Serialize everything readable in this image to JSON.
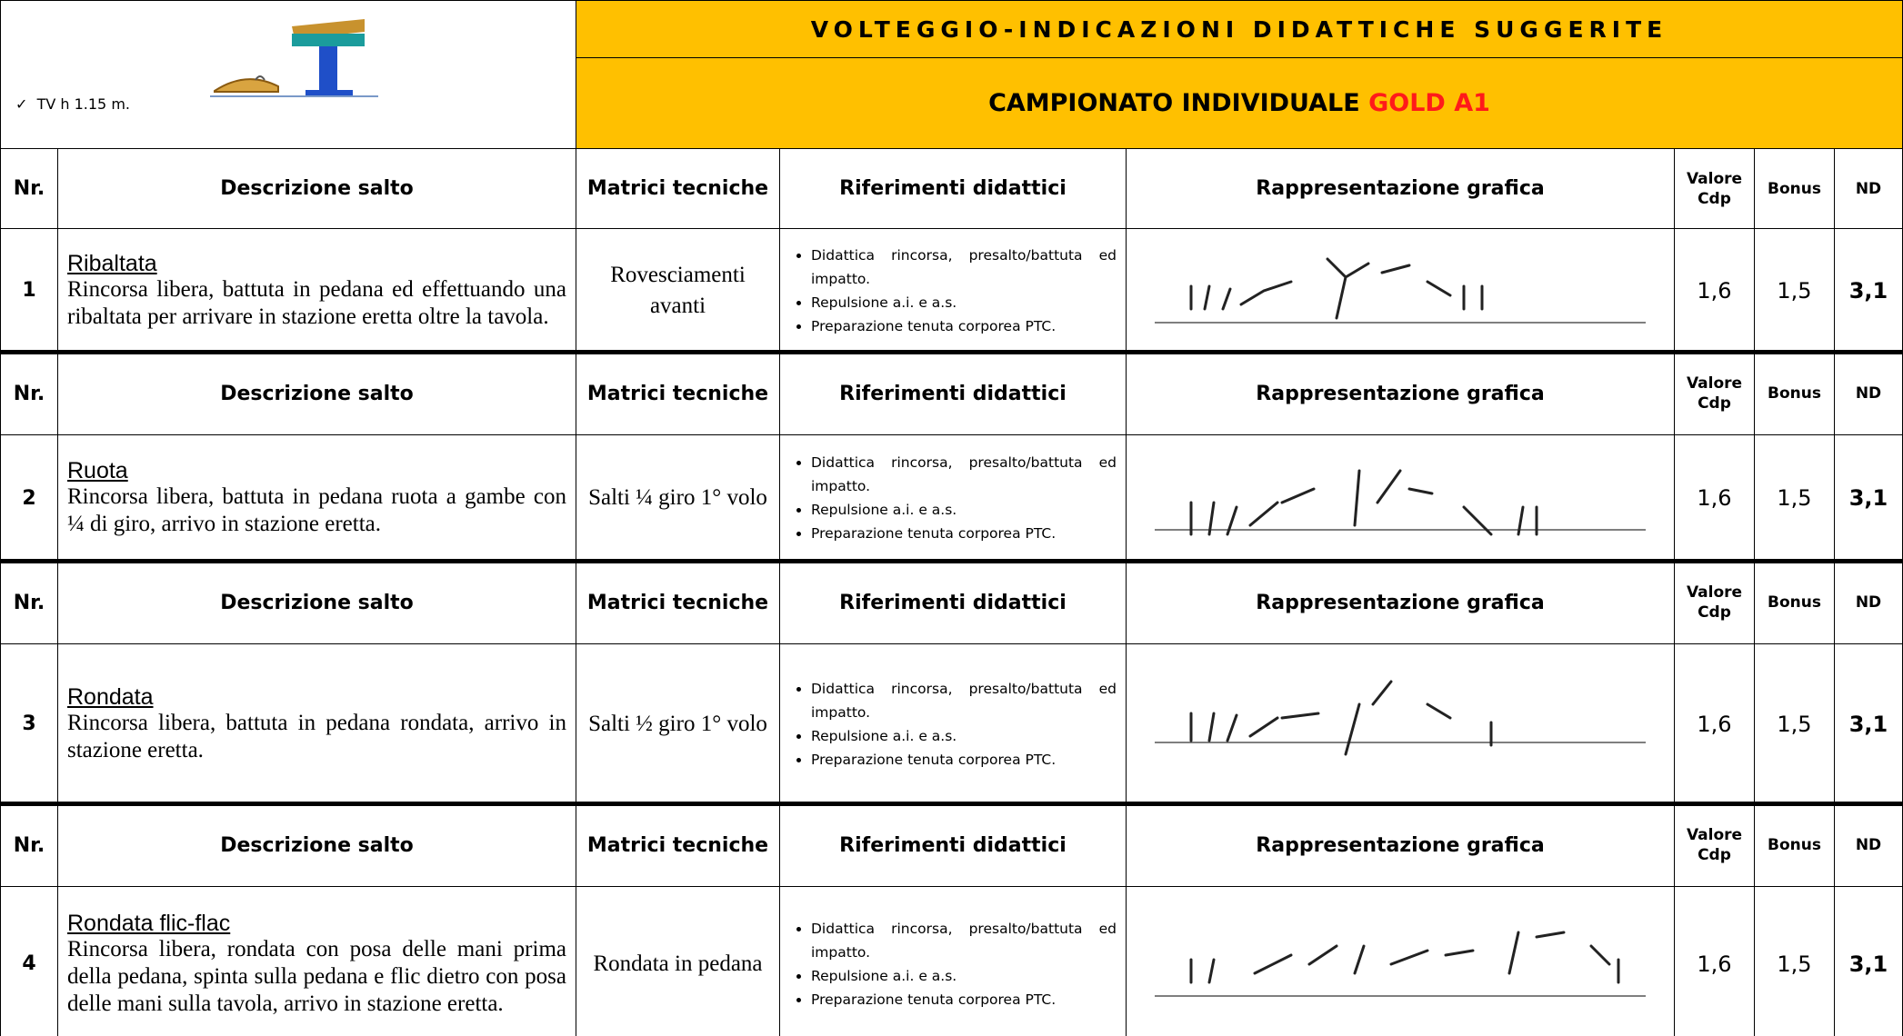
{
  "header": {
    "note": "TV h 1.15 m.",
    "title": "VOLTEGGIO-INDICAZIONI DIDATTICHE SUGGERITE",
    "subtitle": "CAMPIONATO INDIVIDUALE",
    "subtitle_highlight": "GOLD A1"
  },
  "columns": [
    "Nr.",
    "Descrizione salto",
    "Matrici tecniche",
    "Riferimenti didattici",
    "Rappresentazione grafica",
    "Valore Cdp",
    "Bonus",
    "ND"
  ],
  "jumps": [
    {
      "nr": 1,
      "name": "Ribaltata",
      "description": "Rincorsa libera, battuta in pedana ed effettuando una ribaltata per arrivare in stazione eretta oltre la tavola.",
      "matrici": "Rovesciamenti avanti",
      "riferimenti": [
        "Didattica rincorsa, presalto/battuta ed impatto.",
        "Repulsione a.i. e a.s.",
        "Preparazione tenuta corporea PTC."
      ],
      "valore": "1,6",
      "bonus": "1,5",
      "nd": "3,1"
    },
    {
      "nr": 2,
      "name": "Ruota",
      "description": "Rincorsa libera, battuta in pedana ruota a gambe con ¼ di giro, arrivo in stazione eretta.",
      "matrici": "Salti ¼ giro 1° volo",
      "riferimenti": [
        "Didattica rincorsa, presalto/battuta ed impatto.",
        "Repulsione a.i. e a.s.",
        "Preparazione tenuta corporea PTC."
      ],
      "valore": "1,6",
      "bonus": "1,5",
      "nd": "3,1"
    },
    {
      "nr": 3,
      "name": "Rondata",
      "description": "Rincorsa libera, battuta in pedana rondata, arrivo in stazione eretta.",
      "matrici": "Salti ½ giro 1° volo",
      "riferimenti": [
        "Didattica rincorsa, presalto/battuta ed impatto.",
        "Repulsione a.i. e a.s.",
        "Preparazione tenuta corporea PTC."
      ],
      "valore": "1,6",
      "bonus": "1,5",
      "nd": "3,1"
    },
    {
      "nr": 4,
      "name": "Rondata flic-flac",
      "description": "Rincorsa libera, rondata con posa delle mani prima della pedana, spinta sulla pedana e flic dietro con posa delle mani sulla tavola, arrivo in stazione eretta.",
      "matrici": "Rondata in pedana",
      "riferimenti": [
        "Didattica rincorsa, presalto/battuta ed impatto.",
        "Repulsione a.i. e a.s.",
        "Preparazione tenuta corporea PTC."
      ],
      "valore": "1,6",
      "bonus": "1,5",
      "nd": "3,1"
    }
  ]
}
